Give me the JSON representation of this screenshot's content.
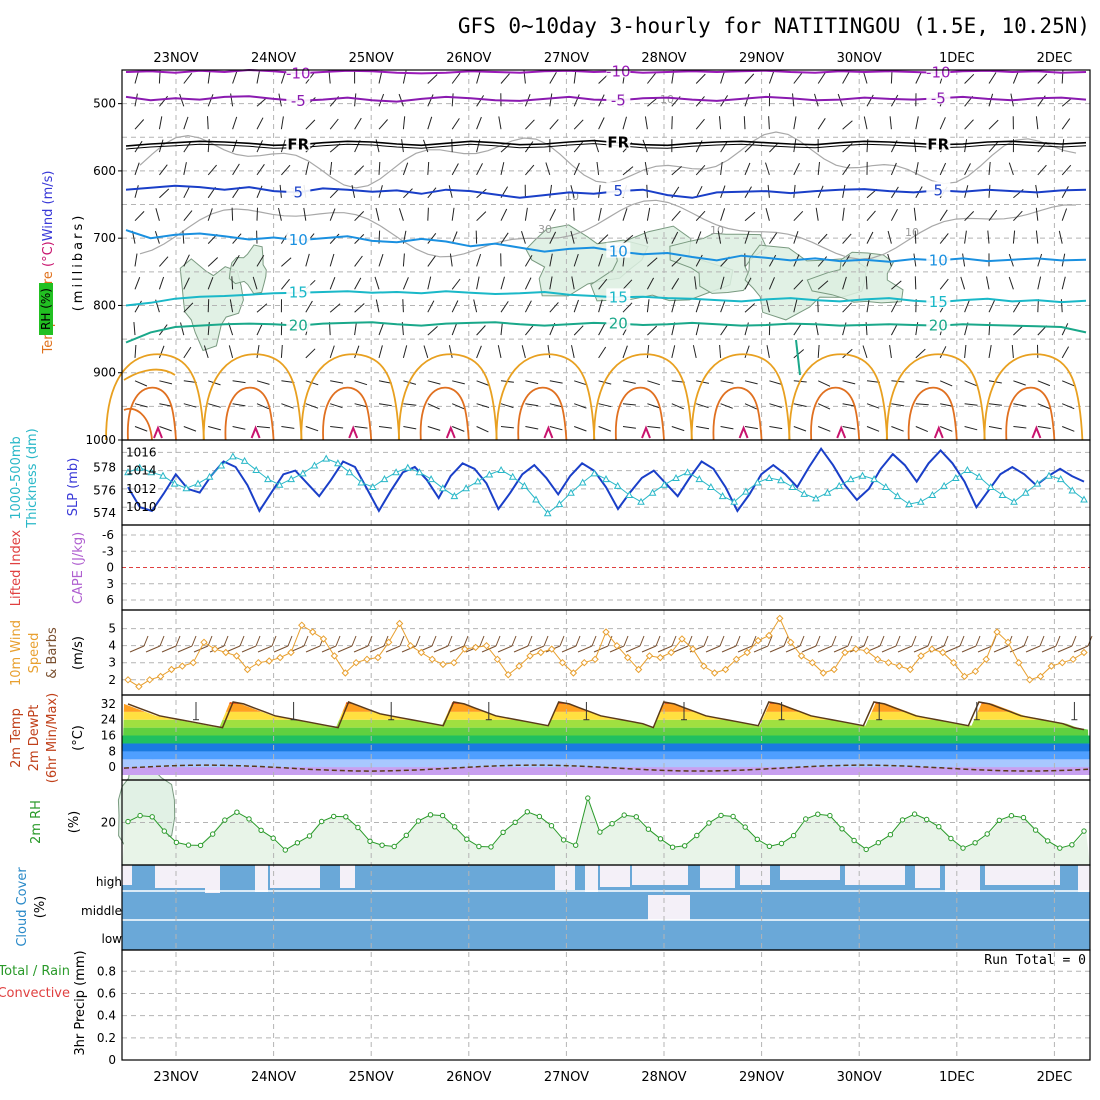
{
  "chart_data": {
    "type": "meteogram",
    "title": "GFS 0~10day 3-hourly for NATITINGOU (1.5E, 10.25N)",
    "dates": [
      "23NOV",
      "24NOV",
      "25NOV",
      "26NOV",
      "27NOV",
      "28NOV",
      "29NOV",
      "30NOV",
      "1DEC",
      "2DEC"
    ],
    "panels": {
      "upper_air": {
        "ylabel_left": "Temperature (°C)",
        "ylabel_right": "Wind (m/s)",
        "ylabel_unit": "(millibars)",
        "rh_label": "RH (%)",
        "yticks": [
          500,
          600,
          700,
          800,
          900,
          1000
        ],
        "ylim": [
          1000,
          450
        ],
        "isotherms": [
          {
            "label": "-10",
            "color": "#9a1ab8",
            "levels": [
              453,
              452,
              454,
              451,
              453,
              450,
              452,
              455,
              453,
              451,
              452,
              454,
              455,
              454,
              452,
              453,
              454,
              452,
              451,
              453,
              452,
              454,
              453,
              452,
              453,
              452,
              451,
              453,
              454,
              452,
              453,
              452,
              453,
              454,
              452,
              451,
              453,
              452,
              454,
              453
            ]
          },
          {
            "label": "-5",
            "color": "#8a1ab0",
            "levels": [
              490,
              495,
              492,
              494,
              490,
              489,
              493,
              496,
              494,
              491,
              495,
              497,
              493,
              490,
              492,
              495,
              496,
              493,
              490,
              494,
              495,
              492,
              491,
              494,
              496,
              493,
              490,
              492,
              495,
              494,
              491,
              493,
              494,
              492,
              490,
              493,
              495,
              492,
              491,
              494
            ]
          },
          {
            "label": "FR",
            "color": "#000000",
            "levels": [
              563,
              560,
              558,
              556,
              557,
              559,
              562,
              561,
              558,
              556,
              557,
              560,
              562,
              559,
              556,
              558,
              561,
              560,
              557,
              555,
              558,
              561,
              562,
              559,
              557,
              556,
              558,
              560,
              561,
              558,
              556,
              557,
              559,
              561,
              560,
              557,
              556,
              558,
              560,
              558
            ]
          },
          {
            "label": "5",
            "color": "#1a3fc8",
            "levels": [
              628,
              625,
              622,
              624,
              628,
              624,
              630,
              632,
              626,
              628,
              631,
              629,
              634,
              628,
              630,
              635,
              640,
              636,
              632,
              634,
              630,
              628,
              636,
              640,
              632,
              631,
              630,
              633,
              630,
              628,
              627,
              630,
              632,
              629,
              631,
              628,
              630,
              632,
              629,
              628
            ]
          },
          {
            "label": "10",
            "color": "#1a90e0",
            "levels": [
              688,
              700,
              695,
              693,
              697,
              702,
              699,
              703,
              700,
              697,
              704,
              706,
              701,
              705,
              712,
              708,
              714,
              720,
              716,
              714,
              720,
              724,
              722,
              728,
              733,
              726,
              729,
              733,
              730,
              734,
              732,
              735,
              731,
              733,
              730,
              734,
              732,
              730,
              733,
              732
            ]
          },
          {
            "label": "15",
            "color": "#1ab8c8",
            "levels": [
              800,
              796,
              790,
              787,
              786,
              784,
              782,
              781,
              780,
              779,
              781,
              780,
              782,
              779,
              781,
              783,
              782,
              780,
              784,
              786,
              788,
              787,
              789,
              790,
              792,
              794,
              791,
              789,
              792,
              794,
              791,
              789,
              793,
              795,
              792,
              790,
              794,
              792,
              795,
              793
            ]
          },
          {
            "label": "20",
            "color": "#1aa88a",
            "levels": [
              855,
              840,
              832,
              830,
              828,
              827,
              828,
              830,
              827,
              826,
              825,
              828,
              830,
              827,
              826,
              825,
              828,
              830,
              828,
              826,
              827,
              829,
              828,
              826,
              828,
              830,
              829,
              827,
              828,
              830,
              829,
              828,
              829,
              830,
              828,
              829,
              830,
              831,
              832,
              840
            ]
          }
        ],
        "cloud_contour_labels": [
          "10",
          "30"
        ],
        "boundary_layer_contours": [
          "#e8a020",
          "#e07020",
          "#c8146e"
        ]
      },
      "thickness_slp": {
        "ylabel_left": "1000-500mb Thickness (dm)",
        "ylabel_right": "SLP (mb)",
        "yticks_left": [
          574,
          576,
          578
        ],
        "yticks_right": [
          1010,
          1012,
          1014,
          1016
        ],
        "thickness": [
          577.6,
          578.0,
          577.6,
          577.3,
          576.6,
          576.2,
          576.6,
          577.2,
          578.2,
          579.0,
          578.6,
          577.8,
          577.0,
          576.5,
          577.0,
          577.5,
          578.2,
          578.8,
          578.4,
          577.6,
          576.7,
          576.3,
          577.0,
          577.6,
          578.0,
          577.6,
          577.0,
          576.2,
          575.5,
          576.2,
          576.8,
          577.4,
          577.8,
          577.2,
          576.4,
          575.2,
          574.0,
          574.8,
          575.8,
          576.7,
          577.5,
          577.0,
          576.4,
          575.6,
          575.0,
          575.8,
          576.5,
          577.1,
          577.6,
          577.0,
          576.3,
          575.5,
          575.0,
          575.9,
          576.7,
          577.1,
          576.9,
          576.3,
          575.7,
          575.3,
          575.8,
          576.4,
          577.0,
          577.3,
          577.0,
          576.3,
          575.5,
          574.8,
          575.0,
          575.6,
          576.4,
          577.1,
          577.8,
          577.2,
          576.3,
          575.6,
          575.0,
          575.8,
          576.6,
          577.3,
          577.0,
          576.0,
          575.2
        ],
        "slp": [
          1012.2,
          1010.0,
          1009.6,
          1011.5,
          1013.6,
          1012.0,
          1011.6,
          1013.5,
          1015.0,
          1014.4,
          1012.4,
          1009.6,
          1011.6,
          1013.6,
          1014.0,
          1012.6,
          1011.2,
          1013.0,
          1015.0,
          1014.4,
          1012.0,
          1009.6,
          1011.8,
          1013.8,
          1014.4,
          1013.0,
          1011.0,
          1013.4,
          1014.8,
          1014.2,
          1012.6,
          1009.8,
          1011.6,
          1013.6,
          1014.6,
          1013.2,
          1011.4,
          1013.4,
          1014.8,
          1014.0,
          1012.2,
          1009.8,
          1011.6,
          1013.2,
          1014.0,
          1012.6,
          1011.2,
          1013.2,
          1015.0,
          1014.2,
          1012.2,
          1009.6,
          1011.4,
          1013.6,
          1014.6,
          1013.6,
          1012.2,
          1014.4,
          1016.4,
          1014.6,
          1012.4,
          1010.8,
          1012.0,
          1014.2,
          1015.8,
          1014.6,
          1012.8,
          1014.8,
          1016.2,
          1014.8,
          1012.8,
          1010.0,
          1011.8,
          1013.6,
          1014.4,
          1013.6,
          1012.4,
          1013.4,
          1014.2,
          1013.4,
          1012.8
        ]
      },
      "lifted_index_cape": {
        "ylabel_left": "Lifted Index",
        "ylabel_right": "CAPE (J/kg)",
        "yticks": [
          -6,
          -3,
          0,
          3,
          6
        ]
      },
      "wind10m": {
        "ylabel": "10m Wind Speed & Barbs",
        "unit": "(m/s)",
        "yticks": [
          2,
          3,
          4,
          5
        ],
        "speed": [
          2.0,
          1.6,
          2.0,
          2.2,
          2.6,
          2.8,
          3.0,
          4.2,
          3.8,
          3.6,
          3.4,
          2.6,
          3.0,
          3.1,
          3.3,
          3.6,
          5.2,
          4.8,
          4.4,
          3.4,
          2.4,
          3.0,
          3.2,
          3.3,
          4.2,
          5.3,
          4.0,
          3.6,
          3.2,
          2.9,
          3.0,
          3.8,
          3.9,
          4.0,
          3.2,
          2.3,
          2.8,
          3.4,
          3.6,
          3.8,
          3.0,
          2.4,
          3.0,
          3.2,
          4.8,
          4.0,
          3.3,
          2.6,
          3.4,
          3.3,
          3.6,
          4.4,
          3.8,
          2.8,
          2.4,
          2.6,
          3.2,
          3.6,
          4.3,
          4.6,
          5.6,
          4.2,
          3.4,
          3.0,
          2.4,
          2.6,
          3.6,
          3.8,
          3.7,
          3.2,
          3.0,
          2.8,
          2.6,
          3.4,
          3.8,
          3.6,
          3.0,
          2.2,
          2.5,
          3.2,
          4.8,
          4.2,
          3.0,
          2.0,
          2.2,
          2.8,
          3.0,
          3.2,
          3.6
        ]
      },
      "temp2m": {
        "ylabel": "2m Temp 2m DewPt (6hr Min/Max)",
        "unit": "(°C)",
        "yticks": [
          0,
          8,
          16,
          24,
          32
        ],
        "temp": [
          32,
          30,
          28,
          26,
          25,
          24,
          23,
          22,
          21,
          20,
          33,
          32,
          30,
          28,
          26,
          25,
          24,
          23,
          22,
          21,
          20,
          33,
          31,
          29,
          27,
          26,
          25,
          24,
          23,
          22,
          21,
          33,
          32,
          30,
          28,
          26,
          25,
          24,
          23,
          22,
          21,
          33,
          32,
          30,
          28,
          26,
          25,
          24,
          23,
          22,
          20,
          33,
          32,
          30,
          28,
          26,
          25,
          24,
          23,
          22,
          21,
          33,
          32,
          30,
          28,
          26,
          25,
          24,
          23,
          22,
          21,
          33,
          32,
          30,
          28,
          26,
          25,
          24,
          23,
          22,
          21,
          33,
          32,
          30,
          28,
          26,
          25,
          24,
          23,
          22,
          20,
          19
        ]
      },
      "rh2m": {
        "ylabel": "2m RH",
        "unit": "(%)",
        "yticks": [
          20
        ]
      },
      "cloud_cover": {
        "ylabel": "Cloud Cover (%)",
        "levels": [
          "high",
          "middle",
          "low"
        ]
      },
      "precip": {
        "ylabel": "3hr Precip (mm)",
        "legend": [
          "Total / Rain",
          "Convective"
        ],
        "yticks": [
          0,
          0.2,
          0.4,
          0.6,
          0.8
        ],
        "run_total_label": "Run Total = 0"
      }
    }
  }
}
